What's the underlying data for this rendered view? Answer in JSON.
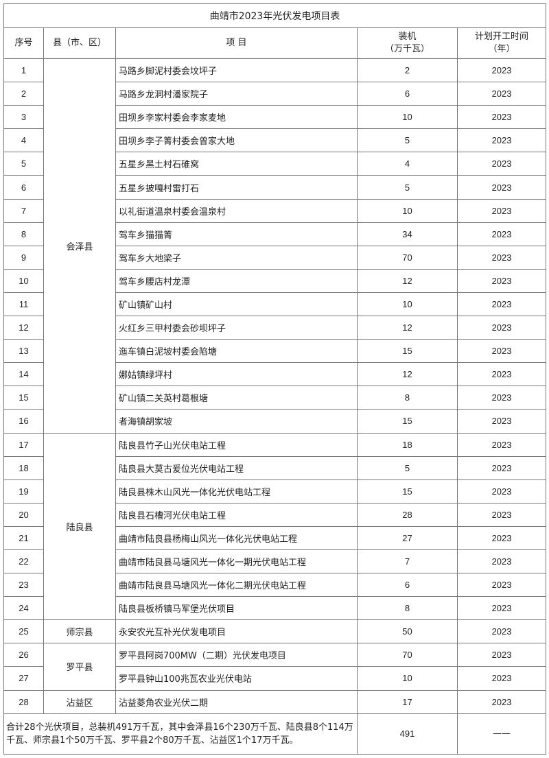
{
  "title": "曲靖市2023年光伏发电项目表",
  "headers": {
    "seq": "序号",
    "county": "县（市、区）",
    "project": "项 目",
    "capacity_1": "装机",
    "capacity_2": "（万千瓦）",
    "start_1": "计划开工时间",
    "start_2": "（年）"
  },
  "counties": [
    {
      "name": "会泽县",
      "rows": 16
    },
    {
      "name": "陆良县",
      "rows": 8
    },
    {
      "name": "师宗县",
      "rows": 1
    },
    {
      "name": "罗平县",
      "rows": 2
    },
    {
      "name": "沾益区",
      "rows": 1
    }
  ],
  "rows": [
    {
      "seq": "1",
      "project": "马路乡脚泥村委会坟坪子",
      "capacity": "2",
      "year": "2023"
    },
    {
      "seq": "2",
      "project": "马路乡龙洞村潘家院子",
      "capacity": "6",
      "year": "2023"
    },
    {
      "seq": "3",
      "project": "田坝乡李家村委会李家麦地",
      "capacity": "10",
      "year": "2023"
    },
    {
      "seq": "4",
      "project": "田坝乡李子箐村委会曾家大地",
      "capacity": "5",
      "year": "2023"
    },
    {
      "seq": "5",
      "project": "五星乡黑土村石碓窝",
      "capacity": "4",
      "year": "2023"
    },
    {
      "seq": "6",
      "project": "五星乡披嘎村雷打石",
      "capacity": "5",
      "year": "2023"
    },
    {
      "seq": "7",
      "project": "以礼街道温泉村委会温泉村",
      "capacity": "10",
      "year": "2023"
    },
    {
      "seq": "8",
      "project": "驾车乡猫猫箐",
      "capacity": "34",
      "year": "2023"
    },
    {
      "seq": "9",
      "project": "驾车乡大地梁子",
      "capacity": "70",
      "year": "2023"
    },
    {
      "seq": "10",
      "project": "驾车乡腰店村龙潭",
      "capacity": "12",
      "year": "2023"
    },
    {
      "seq": "11",
      "project": "矿山镇矿山村",
      "capacity": "10",
      "year": "2023"
    },
    {
      "seq": "12",
      "project": "火红乡三甲村委会砂坝坪子",
      "capacity": "12",
      "year": "2023"
    },
    {
      "seq": "13",
      "project": "迤车镇白泥坡村委会陷塘",
      "capacity": "15",
      "year": "2023"
    },
    {
      "seq": "14",
      "project": "娜姑镇绿坪村",
      "capacity": "12",
      "year": "2023"
    },
    {
      "seq": "15",
      "project": "矿山镇二关英村葛根塘",
      "capacity": "8",
      "year": "2023"
    },
    {
      "seq": "16",
      "project": "者海镇胡家坡",
      "capacity": "15",
      "year": "2023"
    },
    {
      "seq": "17",
      "project": "陆良县竹子山光伏电站工程",
      "capacity": "18",
      "year": "2023"
    },
    {
      "seq": "18",
      "project": "陆良县大莫古爰位光伏电站工程",
      "capacity": "5",
      "year": "2023"
    },
    {
      "seq": "19",
      "project": "陆良县株木山风光一体化光伏电站工程",
      "capacity": "15",
      "year": "2023"
    },
    {
      "seq": "20",
      "project": "陆良县石槽河光伏电站工程",
      "capacity": "28",
      "year": "2023"
    },
    {
      "seq": "21",
      "project": "曲靖市陆良县杨梅山风光一体化光伏电站工程",
      "capacity": "27",
      "year": "2023"
    },
    {
      "seq": "22",
      "project": "曲靖市陆良县马塘风光一体化一期光伏电站工程",
      "capacity": "7",
      "year": "2023"
    },
    {
      "seq": "23",
      "project": "曲靖市陆良县马塘风光一体化二期光伏电站工程",
      "capacity": "6",
      "year": "2023"
    },
    {
      "seq": "24",
      "project": "陆良县板桥镇马军堡光伏项目",
      "capacity": "8",
      "year": "2023"
    },
    {
      "seq": "25",
      "project": "永安农光互补光伏发电项目",
      "capacity": "50",
      "year": "2023"
    },
    {
      "seq": "26",
      "project": "罗平县阿岗700MW（二期）光伏发电项目",
      "capacity": "70",
      "year": "2023"
    },
    {
      "seq": "27",
      "project": "罗平县钟山100兆瓦农业光伏电站",
      "capacity": "10",
      "year": "2023"
    },
    {
      "seq": "28",
      "project": "沾益菱角农业光伏二期",
      "capacity": "17",
      "year": "2023"
    }
  ],
  "summary": {
    "text": "合计28个光伏项目，总装机491万千瓦，其中会泽县16个230万千瓦、陆良县8个114万千瓦、师宗县1个50万千瓦、罗平县2个80万千瓦、沾益区1个17万千瓦。",
    "capacity": "491",
    "year": "——"
  }
}
